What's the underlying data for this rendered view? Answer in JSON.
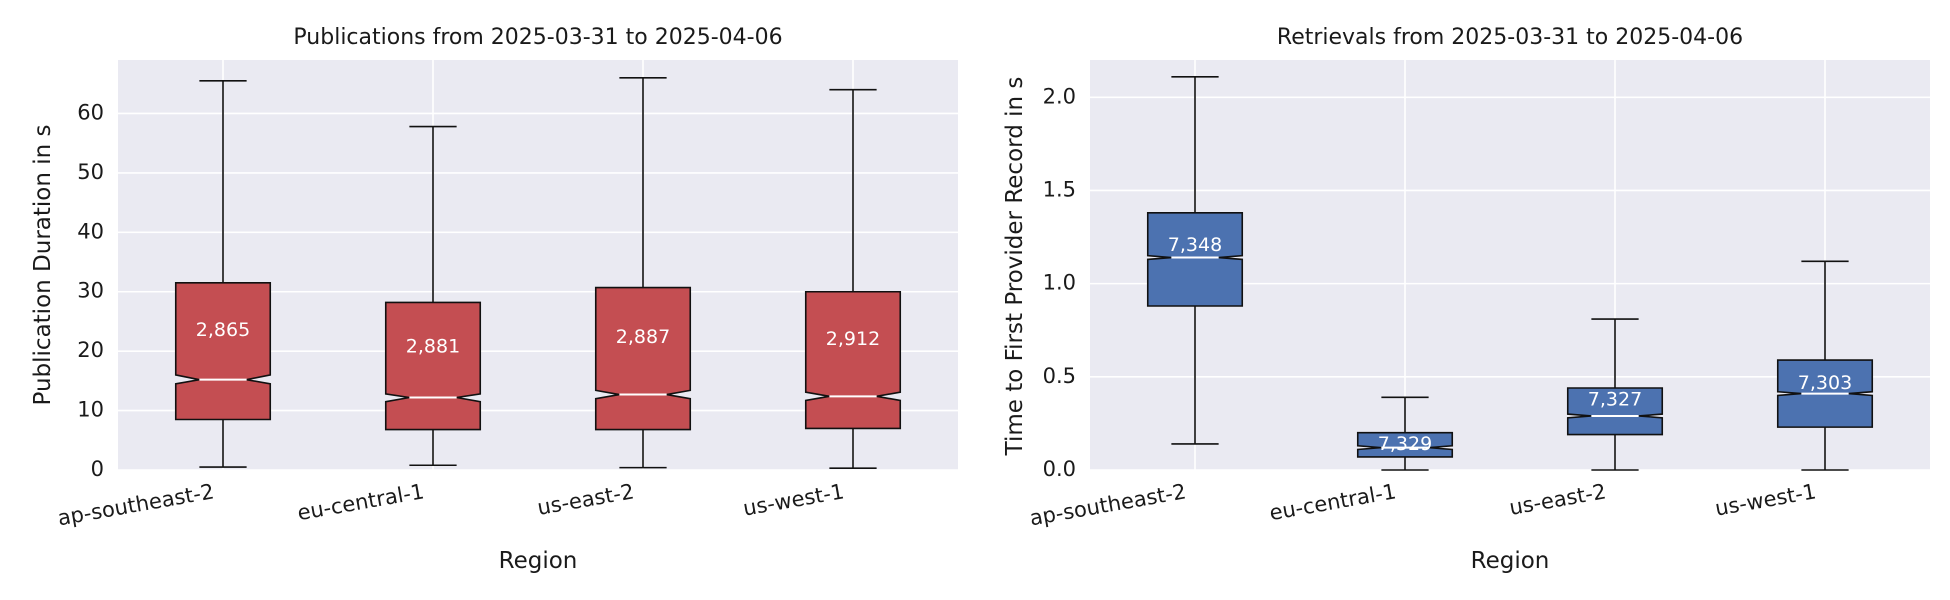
{
  "chart_data": [
    {
      "type": "box",
      "title": "Publications from 2025-03-31 to 2025-04-06",
      "xlabel": "Region",
      "ylabel": "Publication Duration in s",
      "ylim": [
        0,
        69
      ],
      "yticks": [
        0,
        10,
        20,
        30,
        40,
        50,
        60
      ],
      "grid": true,
      "color": "#c44e52",
      "categories": [
        "ap-southeast-2",
        "eu-central-1",
        "us-east-2",
        "us-west-1"
      ],
      "boxes": [
        {
          "whislo": 0.5,
          "q1": 8.5,
          "med": 15.2,
          "q3": 31.5,
          "whishi": 65.5,
          "notch_lo": 14.5,
          "notch_hi": 16.0,
          "count_label": "2,865"
        },
        {
          "whislo": 0.8,
          "q1": 6.8,
          "med": 12.2,
          "q3": 28.2,
          "whishi": 57.8,
          "notch_lo": 11.5,
          "notch_hi": 12.8,
          "count_label": "2,881"
        },
        {
          "whislo": 0.4,
          "q1": 6.8,
          "med": 12.7,
          "q3": 30.7,
          "whishi": 66.0,
          "notch_lo": 12.0,
          "notch_hi": 13.4,
          "count_label": "2,887"
        },
        {
          "whislo": 0.3,
          "q1": 7.0,
          "med": 12.4,
          "q3": 30.0,
          "whishi": 64.0,
          "notch_lo": 11.7,
          "notch_hi": 13.1,
          "count_label": "2,912"
        }
      ]
    },
    {
      "type": "box",
      "title": "Retrievals from 2025-03-31 to 2025-04-06",
      "xlabel": "Region",
      "ylabel": "Time to First Provider Record in s",
      "ylim": [
        0,
        2.2
      ],
      "yticks": [
        0.0,
        0.5,
        1.0,
        1.5,
        2.0
      ],
      "ytick_labels": [
        "0.0",
        "0.5",
        "1.0",
        "1.5",
        "2.0"
      ],
      "grid": true,
      "color": "#4c72b0",
      "categories": [
        "ap-southeast-2",
        "eu-central-1",
        "us-east-2",
        "us-west-1"
      ],
      "boxes": [
        {
          "whislo": 0.14,
          "q1": 0.88,
          "med": 1.14,
          "q3": 1.38,
          "whishi": 2.11,
          "notch_lo": 1.13,
          "notch_hi": 1.15,
          "count_label": "7,348"
        },
        {
          "whislo": 0.0,
          "q1": 0.07,
          "med": 0.12,
          "q3": 0.2,
          "whishi": 0.39,
          "notch_lo": 0.11,
          "notch_hi": 0.13,
          "count_label": "7,329"
        },
        {
          "whislo": 0.0,
          "q1": 0.19,
          "med": 0.29,
          "q3": 0.44,
          "whishi": 0.81,
          "notch_lo": 0.28,
          "notch_hi": 0.3,
          "count_label": "7,327"
        },
        {
          "whislo": 0.0,
          "q1": 0.23,
          "med": 0.41,
          "q3": 0.59,
          "whishi": 1.12,
          "notch_lo": 0.4,
          "notch_hi": 0.42,
          "count_label": "7,303"
        }
      ]
    }
  ]
}
